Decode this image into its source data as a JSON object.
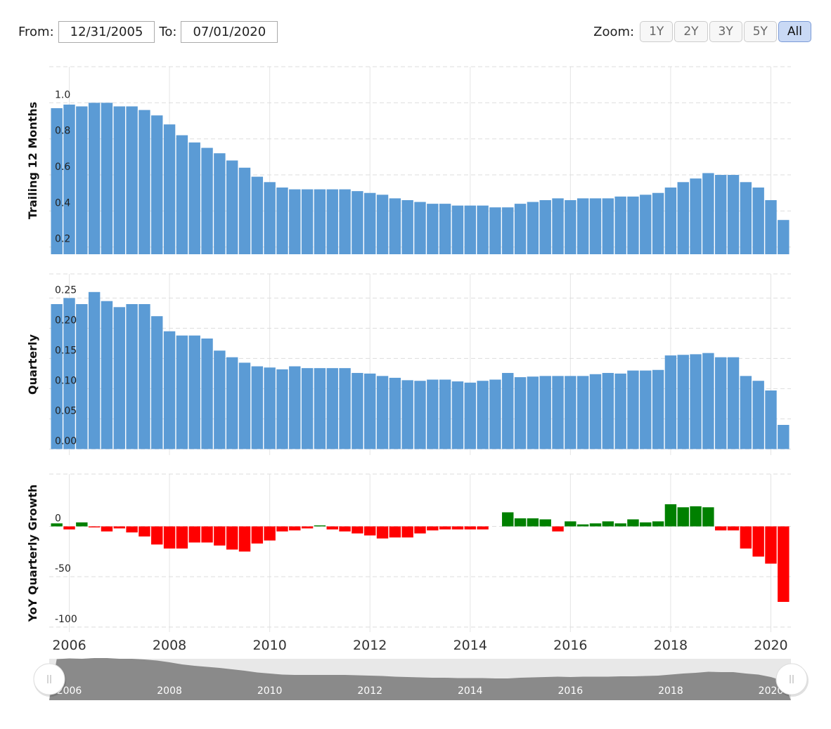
{
  "range_selector": {
    "from_label": "From:",
    "from": "12/31/2005",
    "to_label": "To:",
    "to": "07/01/2020",
    "zoom_label": "Zoom:",
    "zoom_buttons": [
      "1Y",
      "2Y",
      "3Y",
      "5Y",
      "All"
    ]
  },
  "chart_data": [
    {
      "type": "bar",
      "ylabel": "Trailing 12 Months",
      "color": "#5b9bd5",
      "grid": true,
      "x": [
        2005.75,
        2006,
        2006.25,
        2006.5,
        2006.75,
        2007,
        2007.25,
        2007.5,
        2007.75,
        2008,
        2008.25,
        2008.5,
        2008.75,
        2009,
        2009.25,
        2009.5,
        2009.75,
        2010,
        2010.25,
        2010.5,
        2010.75,
        2011,
        2011.25,
        2011.5,
        2011.75,
        2012,
        2012.25,
        2012.5,
        2012.75,
        2013,
        2013.25,
        2013.5,
        2013.75,
        2014,
        2014.25,
        2014.5,
        2014.75,
        2015,
        2015.25,
        2015.5,
        2015.75,
        2016,
        2016.25,
        2016.5,
        2016.75,
        2017,
        2017.25,
        2017.5,
        2017.75,
        2018,
        2018.25,
        2018.5,
        2018.75,
        2019,
        2019.25,
        2019.5,
        2019.75,
        2020,
        2020.25
      ],
      "values": [
        0.97,
        0.99,
        0.98,
        1.0,
        1.0,
        0.98,
        0.98,
        0.96,
        0.93,
        0.88,
        0.82,
        0.78,
        0.75,
        0.72,
        0.68,
        0.64,
        0.59,
        0.56,
        0.53,
        0.52,
        0.52,
        0.52,
        0.52,
        0.52,
        0.51,
        0.5,
        0.49,
        0.47,
        0.46,
        0.45,
        0.44,
        0.44,
        0.43,
        0.43,
        0.43,
        0.42,
        0.42,
        0.44,
        0.45,
        0.46,
        0.47,
        0.46,
        0.47,
        0.47,
        0.47,
        0.48,
        0.48,
        0.49,
        0.5,
        0.53,
        0.56,
        0.58,
        0.61,
        0.6,
        0.6,
        0.56,
        0.53,
        0.46,
        0.35
      ],
      "ylim": [
        0.16,
        1.2
      ],
      "yticks": [
        0.2,
        0.4,
        0.6,
        0.8,
        {
          "value": 1,
          "label": "1.0"
        }
      ]
    },
    {
      "type": "bar",
      "ylabel": "Quarterly",
      "color": "#5b9bd5",
      "grid": true,
      "x": [
        2005.75,
        2006,
        2006.25,
        2006.5,
        2006.75,
        2007,
        2007.25,
        2007.5,
        2007.75,
        2008,
        2008.25,
        2008.5,
        2008.75,
        2009,
        2009.25,
        2009.5,
        2009.75,
        2010,
        2010.25,
        2010.5,
        2010.75,
        2011,
        2011.25,
        2011.5,
        2011.75,
        2012,
        2012.25,
        2012.5,
        2012.75,
        2013,
        2013.25,
        2013.5,
        2013.75,
        2014,
        2014.25,
        2014.5,
        2014.75,
        2015,
        2015.25,
        2015.5,
        2015.75,
        2016,
        2016.25,
        2016.5,
        2016.75,
        2017,
        2017.25,
        2017.5,
        2017.75,
        2018,
        2018.25,
        2018.5,
        2018.75,
        2019,
        2019.25,
        2019.5,
        2019.75,
        2020,
        2020.25
      ],
      "values": [
        0.24,
        0.25,
        0.24,
        0.26,
        0.245,
        0.235,
        0.24,
        0.24,
        0.22,
        0.195,
        0.188,
        0.188,
        0.183,
        0.163,
        0.152,
        0.143,
        0.137,
        0.135,
        0.132,
        0.137,
        0.134,
        0.134,
        0.134,
        0.134,
        0.126,
        0.125,
        0.121,
        0.118,
        0.114,
        0.113,
        0.115,
        0.115,
        0.112,
        0.11,
        0.113,
        0.115,
        0.126,
        0.119,
        0.12,
        0.121,
        0.121,
        0.121,
        0.121,
        0.124,
        0.126,
        0.125,
        0.13,
        0.13,
        0.131,
        0.155,
        0.156,
        0.157,
        0.159,
        0.152,
        0.152,
        0.121,
        0.113,
        0.097,
        0.04
      ],
      "ylim": [
        -0.01,
        0.29
      ],
      "yticks": [
        {
          "value": 0,
          "label": "0.00"
        },
        0.05,
        {
          "value": 0.1,
          "label": "0.10"
        },
        0.15,
        {
          "value": 0.2,
          "label": "0.20"
        },
        0.25
      ]
    },
    {
      "type": "bar",
      "ylabel": "YoY Quarterly Growth",
      "positive_color": "#008000",
      "negative_color": "#ff0000",
      "grid": true,
      "x": [
        2005.75,
        2006,
        2006.25,
        2006.5,
        2006.75,
        2007,
        2007.25,
        2007.5,
        2007.75,
        2008,
        2008.25,
        2008.5,
        2008.75,
        2009,
        2009.25,
        2009.5,
        2009.75,
        2010,
        2010.25,
        2010.5,
        2010.75,
        2011,
        2011.25,
        2011.5,
        2011.75,
        2012,
        2012.25,
        2012.5,
        2012.75,
        2013,
        2013.25,
        2013.5,
        2013.75,
        2014,
        2014.25,
        2014.5,
        2014.75,
        2015,
        2015.25,
        2015.5,
        2015.75,
        2016,
        2016.25,
        2016.5,
        2016.75,
        2017,
        2017.25,
        2017.5,
        2017.75,
        2018,
        2018.25,
        2018.5,
        2018.75,
        2019,
        2019.25,
        2019.5,
        2019.75,
        2020,
        2020.25
      ],
      "values": [
        3,
        -3,
        4,
        -1,
        -5,
        -2,
        -6,
        -10,
        -18,
        -22,
        -22,
        -16,
        -16,
        -19,
        -23,
        -25,
        -17,
        -14,
        -5,
        -4,
        -2,
        1,
        -3,
        -5,
        -7,
        -9,
        -12,
        -11,
        -11,
        -7,
        -4,
        -3,
        -3,
        -3,
        -3,
        0,
        14,
        8,
        8,
        7,
        -5,
        5,
        2,
        3,
        5,
        3,
        7,
        4,
        5,
        22,
        19,
        20,
        19,
        -4,
        -4,
        -22,
        -30,
        -37,
        -75
      ],
      "ylim": [
        -105,
        52
      ],
      "yticks": [
        0,
        -50,
        -100
      ],
      "xlim": [
        2005.6,
        2020.4
      ],
      "xticks": [
        2006,
        2008,
        2010,
        2012,
        2014,
        2016,
        2018,
        2020
      ]
    }
  ]
}
